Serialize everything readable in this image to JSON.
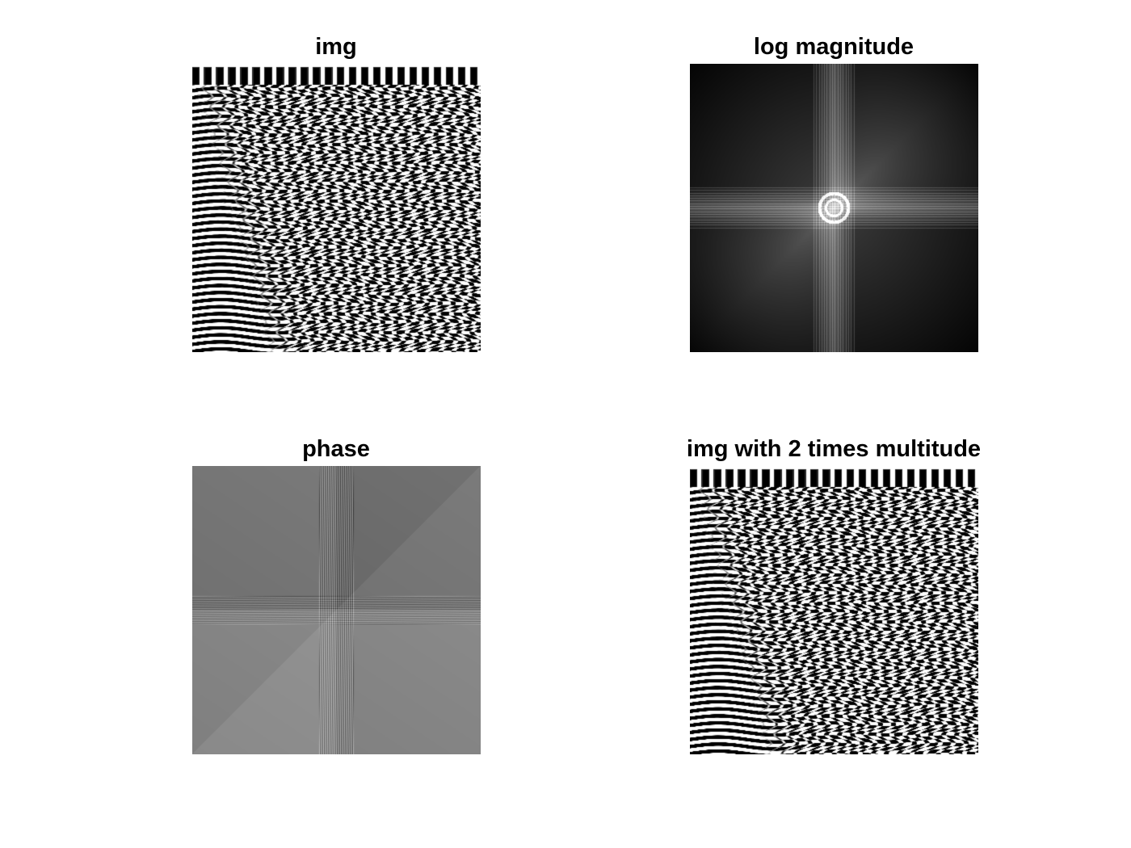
{
  "figure": {
    "panels": [
      {
        "title": "img",
        "content": "spatial-image"
      },
      {
        "title": "log magnitude",
        "content": "log-magnitude-spectrum"
      },
      {
        "title": "phase",
        "content": "phase-spectrum"
      },
      {
        "title": "img with 2 times multitude",
        "content": "amplitude-scaled-image"
      }
    ],
    "colormap": "gray"
  }
}
